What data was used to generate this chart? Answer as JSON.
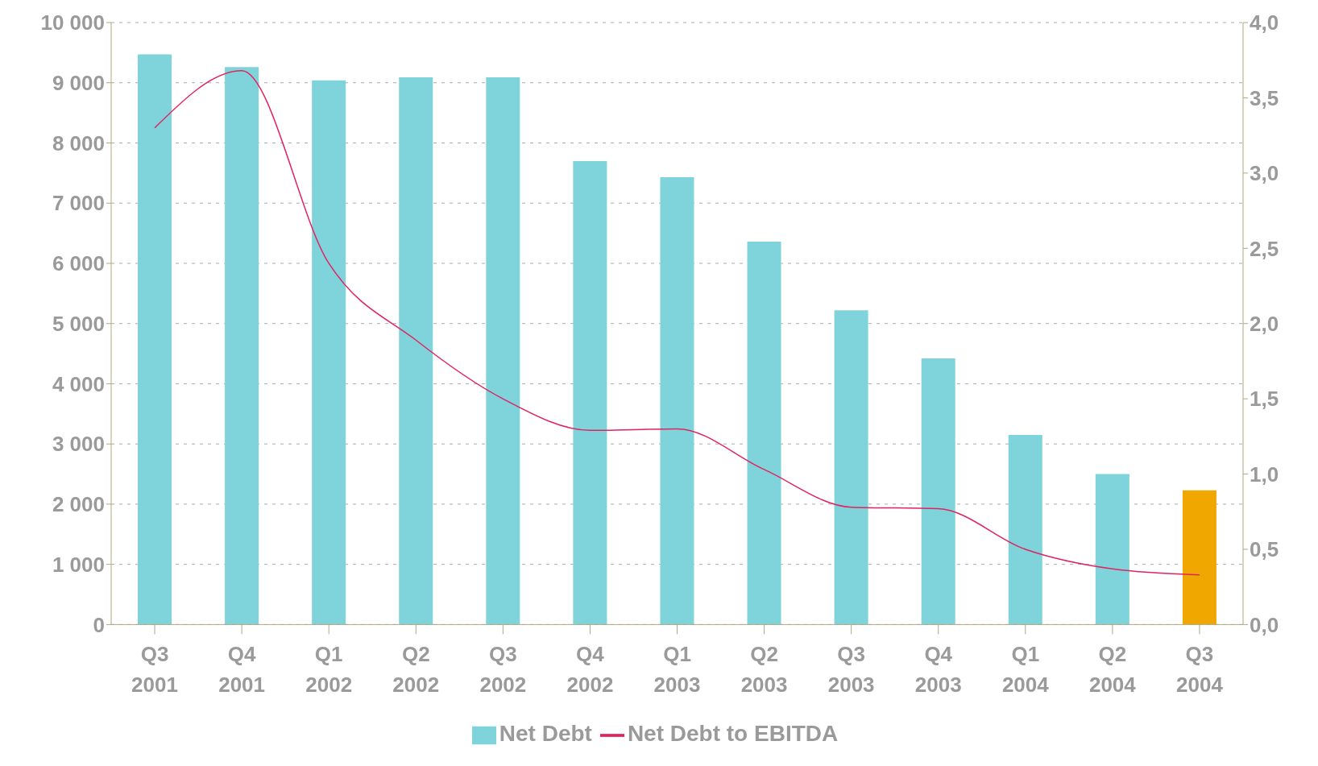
{
  "chart_data": {
    "type": "bar",
    "categories": [
      "Q3\n2001",
      "Q4\n2001",
      "Q1\n2002",
      "Q2\n2002",
      "Q3\n2002",
      "Q4\n2002",
      "Q1\n2003",
      "Q2\n2003",
      "Q3\n2003",
      "Q4\n2003",
      "Q1\n2004",
      "Q2\n2004",
      "Q3\n2004"
    ],
    "series": [
      {
        "name": "Net Debt",
        "color": "#7fd4dc",
        "colors": [
          "#7fd4dc",
          "#7fd4dc",
          "#7fd4dc",
          "#7fd4dc",
          "#7fd4dc",
          "#7fd4dc",
          "#7fd4dc",
          "#7fd4dc",
          "#7fd4dc",
          "#7fd4dc",
          "#7fd4dc",
          "#7fd4dc",
          "#f0a800"
        ],
        "values": [
          9470,
          9260,
          9040,
          9090,
          9090,
          7700,
          7430,
          6360,
          5220,
          4420,
          3150,
          2500,
          2230
        ]
      },
      {
        "name": "Net Debt to EBITDA",
        "type": "line",
        "axis": "y2",
        "color": "#e0245e",
        "values": [
          3.3,
          3.68,
          2.4,
          1.89,
          1.5,
          1.29,
          1.3,
          1.03,
          0.78,
          0.77,
          0.5,
          0.37,
          0.33
        ]
      }
    ],
    "ylim": [
      0,
      10000
    ],
    "yticks": [
      {
        "value": 0,
        "label": "0"
      },
      {
        "value": 1000,
        "label": "1 000"
      },
      {
        "value": 2000,
        "label": "2 000"
      },
      {
        "value": 3000,
        "label": "3 000"
      },
      {
        "value": 4000,
        "label": "4 000"
      },
      {
        "value": 5000,
        "label": "5 000"
      },
      {
        "value": 6000,
        "label": "6 000"
      },
      {
        "value": 7000,
        "label": "7 000"
      },
      {
        "value": 8000,
        "label": "8 000"
      },
      {
        "value": 9000,
        "label": "9 000"
      },
      {
        "value": 10000,
        "label": "10 000"
      }
    ],
    "y2lim": [
      0,
      4
    ],
    "y2ticks": [
      {
        "value": 0,
        "label": "0,0"
      },
      {
        "value": 0.5,
        "label": "0,5"
      },
      {
        "value": 1,
        "label": "1,0"
      },
      {
        "value": 1.5,
        "label": "1,5"
      },
      {
        "value": 2,
        "label": "2,0"
      },
      {
        "value": 2.5,
        "label": "2,5"
      },
      {
        "value": 3,
        "label": "3,0"
      },
      {
        "value": 3.5,
        "label": "3,5"
      },
      {
        "value": 4,
        "label": "4,0"
      }
    ],
    "grid": "y",
    "legend": "bottom",
    "marker": "none",
    "line_style": "solid"
  }
}
